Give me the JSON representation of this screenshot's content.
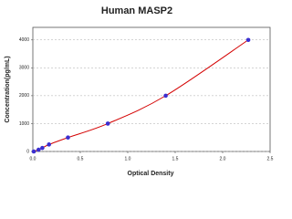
{
  "chart_data": {
    "type": "scatter",
    "title": "Human MASP2",
    "xlabel": "Optical Density",
    "ylabel": "Concentration(pg/mL)",
    "x": [
      0.01,
      0.06,
      0.1,
      0.17,
      0.37,
      0.79,
      1.4,
      2.27
    ],
    "values": [
      0,
      62.5,
      125,
      250,
      500,
      1000,
      2000,
      4000
    ],
    "marker_color": "#3b2fd0",
    "line_color": "#d40000",
    "xlim": [
      0,
      2.5
    ],
    "xticks": [
      {
        "value": 0,
        "label": "0.0"
      },
      0.5,
      {
        "value": 1,
        "label": "1.0"
      },
      1.5,
      {
        "value": 2,
        "label": "2.0"
      },
      2.5
    ],
    "ylim": [
      0,
      4450
    ],
    "yticks": [
      0,
      1000,
      2000,
      3000,
      4000
    ],
    "grid": true
  }
}
